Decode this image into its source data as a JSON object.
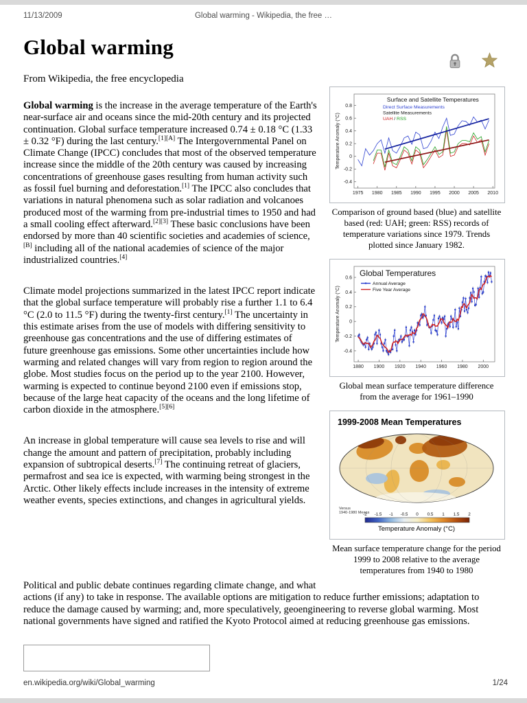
{
  "page": {
    "header": {
      "date": "11/13/2009",
      "title": "Global warming - Wikipedia, the free …"
    },
    "footer": {
      "url": "en.wikipedia.org/wiki/Global_warming",
      "page": "1/24"
    }
  },
  "icons": {
    "protection_lock": "lock-icon",
    "featured_article": "star-icon",
    "lock_color": "#b9b9b9",
    "star_color": "#b5a267"
  },
  "article": {
    "title": "Global warming",
    "tagline": "From Wikipedia, the free encyclopedia",
    "paragraphs": [
      {
        "segments": [
          {
            "t": "Global warming",
            "b": true
          },
          {
            "t": " is the increase in the average temperature of the Earth's near-surface air and oceans since the mid-20th century and its projected continuation. Global surface temperature increased 0.74 ± 0.18 °C (1.33 ± 0.32 °F) during the last century."
          },
          {
            "t": "[1][A]",
            "sup": true
          },
          {
            "t": " The Intergovernmental Panel on Climate Change (IPCC) concludes that most of the observed temperature increase since the middle of the 20th century was caused by increasing concentrations of greenhouse gases resulting from human activity such as fossil fuel burning and deforestation."
          },
          {
            "t": "[1]",
            "sup": true
          },
          {
            "t": " The IPCC also concludes that variations in natural phenomena such as solar radiation and volcanoes produced most of the warming from pre-industrial times to 1950 and had a small cooling effect afterward."
          },
          {
            "t": "[2][3]",
            "sup": true
          },
          {
            "t": " These basic conclusions have been endorsed by more than 40 scientific societies and academies of science,"
          },
          {
            "t": "[B]",
            "sup": true
          },
          {
            "t": " including all of the national academies of science of the major industrialized countries."
          },
          {
            "t": "[4]",
            "sup": true
          }
        ]
      },
      {
        "segments": [
          {
            "t": "Climate model projections summarized in the latest IPCC report indicate that the global surface temperature will probably rise a further 1.1 to 6.4 °C (2.0 to 11.5 °F) during the twenty-first century."
          },
          {
            "t": "[1]",
            "sup": true
          },
          {
            "t": " The uncertainty in this estimate arises from the use of models with differing sensitivity to greenhouse gas concentrations and the use of differing estimates of future greenhouse gas emissions. Some other uncertainties include how warming and related changes will vary from region to region around the globe. Most studies focus on the period up to the year 2100. However, warming is expected to continue beyond 2100 even if emissions stop, because of the large heat capacity of the oceans and the long lifetime of carbon dioxide in the atmosphere."
          },
          {
            "t": "[5][6]",
            "sup": true
          }
        ]
      },
      {
        "segments": [
          {
            "t": "An increase in global temperature will cause sea levels to rise and will change the amount and pattern of precipitation, probably including expansion of subtropical deserts."
          },
          {
            "t": "[7]",
            "sup": true
          },
          {
            "t": " The continuing retreat of glaciers, permafrost and sea ice is expected, with warming being strongest in the Arctic. Other likely effects include increases in the intensity of extreme weather events, species extinctions, and changes in agricultural yields."
          }
        ]
      },
      {
        "segments": [
          {
            "t": "Political and public debate continues regarding climate change, and what actions (if any) to take in response. The available options are mitigation to reduce further emissions; adaptation to reduce the damage caused by warming; and, more speculatively, geoengineering to reverse global warming. Most national governments have signed and ratified the Kyoto Protocol aimed at reducing greenhouse gas emissions."
          }
        ]
      }
    ]
  },
  "figures": [
    {
      "caption": "Comparison of ground based (blue) and satellite based (red: UAH; green: RSS) records of temperature variations since 1979. Trends plotted since January 1982."
    },
    {
      "caption": "Global mean surface temperature difference from the average for 1961–1990"
    },
    {
      "caption": "Mean surface temperature change for the period 1999 to 2008 relative to the average temperatures from 1940 to 1980"
    }
  ],
  "chart_data": [
    {
      "type": "line",
      "title": "Surface and Satellite Temperatures",
      "ylabel": "Temperature Anomaly (°C)",
      "xlim": [
        1974,
        2010.5
      ],
      "ylim": [
        -0.5,
        0.98
      ],
      "x_ticks": [
        1975,
        1980,
        1985,
        1990,
        1995,
        2000,
        2005,
        2010
      ],
      "y_ticks": [
        -0.4,
        -0.2,
        0,
        0.2,
        0.4,
        0.6,
        0.8
      ],
      "trend_from": 1982,
      "legend": [
        {
          "text": "Direct Surface Measurements",
          "color": "#2b3fd0"
        },
        {
          "text": "Satellite Measurements",
          "color": "#111111"
        },
        {
          "parts": [
            {
              "text": "UAH",
              "color": "#cc2020"
            },
            {
              "text": " / ",
              "color": "#111111"
            },
            {
              "text": "RSS",
              "color": "#1f9e1f"
            }
          ]
        }
      ],
      "series": [
        {
          "name": "Direct Surface Measurements",
          "color": "#2b3fd0",
          "start": 1975,
          "values": [
            -0.05,
            -0.15,
            0.12,
            0.02,
            0.09,
            0.2,
            0.26,
            0.05,
            0.29,
            0.09,
            0.05,
            0.16,
            0.29,
            0.32,
            0.19,
            0.38,
            0.34,
            0.12,
            0.14,
            0.24,
            0.38,
            0.28,
            0.46,
            0.6,
            0.33,
            0.35,
            0.48,
            0.56,
            0.55,
            0.49,
            0.62,
            0.54,
            0.57,
            0.43,
            0.57
          ]
        },
        {
          "name": "UAH",
          "color": "#cc2020",
          "start": 1979,
          "values": [
            -0.12,
            0.05,
            0.05,
            -0.22,
            0.05,
            -0.15,
            -0.18,
            -0.05,
            0.1,
            0.05,
            -0.12,
            0.1,
            0.05,
            -0.18,
            -0.1,
            0.0,
            0.1,
            -0.02,
            0.02,
            0.42,
            0.0,
            0.02,
            0.15,
            0.2,
            0.2,
            0.18,
            0.32,
            0.22,
            0.26,
            0.02,
            0.2
          ]
        },
        {
          "name": "RSS",
          "color": "#1f9e1f",
          "start": 1979,
          "values": [
            -0.07,
            0.1,
            0.1,
            -0.17,
            0.1,
            -0.1,
            -0.13,
            0.0,
            0.15,
            0.1,
            -0.07,
            0.15,
            0.1,
            -0.13,
            -0.05,
            0.05,
            0.15,
            0.03,
            0.07,
            0.47,
            0.05,
            0.07,
            0.2,
            0.25,
            0.25,
            0.23,
            0.37,
            0.27,
            0.31,
            0.07,
            0.25
          ]
        }
      ],
      "trends": [
        {
          "series": [
            "Direct Surface Measurements"
          ],
          "color": "#13219e"
        },
        {
          "series": [
            "UAH",
            "RSS"
          ],
          "color": "#8d1616"
        }
      ]
    },
    {
      "type": "line",
      "title": "Global Temperatures",
      "ylabel": "Temperature Anomaly (°C)",
      "xlim": [
        1876,
        2011
      ],
      "ylim": [
        -0.55,
        0.75
      ],
      "x_ticks": [
        1880,
        1900,
        1920,
        1940,
        1960,
        1980,
        2000
      ],
      "y_ticks": [
        -0.4,
        -0.2,
        0,
        0.2,
        0.4,
        0.6
      ],
      "legend": [
        {
          "text": "Annual Average",
          "color": "#2b3fd0"
        },
        {
          "text": "Five Year Average",
          "color": "#d02020"
        }
      ],
      "series": [
        {
          "name": "Annual Average",
          "color": "#2b3fd0",
          "start": 1880,
          "values": [
            -0.2,
            -0.18,
            -0.25,
            -0.28,
            -0.3,
            -0.32,
            -0.3,
            -0.35,
            -0.25,
            -0.22,
            -0.38,
            -0.3,
            -0.35,
            -0.38,
            -0.35,
            -0.3,
            -0.18,
            -0.15,
            -0.3,
            -0.2,
            -0.12,
            -0.18,
            -0.3,
            -0.35,
            -0.4,
            -0.3,
            -0.25,
            -0.4,
            -0.42,
            -0.45,
            -0.4,
            -0.42,
            -0.38,
            -0.38,
            -0.2,
            -0.12,
            -0.32,
            -0.4,
            -0.28,
            -0.25,
            -0.25,
            -0.2,
            -0.28,
            -0.25,
            -0.25,
            -0.2,
            -0.08,
            -0.2,
            -0.2,
            -0.33,
            -0.12,
            -0.08,
            -0.14,
            -0.28,
            -0.12,
            -0.18,
            -0.12,
            -0.02,
            -0.02,
            -0.05,
            0.08,
            0.1,
            0.05,
            0.08,
            0.2,
            0.08,
            -0.05,
            -0.03,
            -0.08,
            -0.08,
            -0.16,
            -0.06,
            0.02,
            0.08,
            -0.12,
            -0.13,
            -0.18,
            0.04,
            0.07,
            0.03,
            -0.02,
            0.05,
            0.03,
            0.07,
            -0.2,
            -0.1,
            -0.04,
            -0.02,
            -0.07,
            0.07,
            0.03,
            -0.08,
            0.01,
            0.16,
            -0.07,
            -0.01,
            -0.1,
            0.18,
            0.07,
            0.16,
            0.26,
            0.32,
            0.14,
            0.31,
            0.16,
            0.12,
            0.18,
            0.32,
            0.39,
            0.27,
            0.45,
            0.4,
            0.22,
            0.23,
            0.31,
            0.45,
            0.33,
            0.46,
            0.61,
            0.38,
            0.4,
            0.54,
            0.62,
            0.61,
            0.53,
            0.67,
            0.62,
            0.66,
            0.54
          ]
        },
        {
          "name": "Five Year Average",
          "color": "#d02020",
          "derived": "moving_average_5"
        }
      ],
      "smooth_window": 5
    },
    {
      "type": "heatmap",
      "title": "1999-2008 Mean Temperatures",
      "note_lines": [
        "Versus",
        "1940-1980 Means"
      ],
      "land_colors": [
        "#e9b34b",
        "#d88c28",
        "#b25d13",
        "#8e3b0a",
        "#f1e4bf",
        "#aac4dd",
        "#f7f2e2"
      ],
      "colorbar": {
        "ticks": [
          "-2",
          "-1.5",
          "-1",
          "-0.5",
          "0",
          "0.5",
          "1",
          "1.5",
          "2"
        ],
        "label": "Temperature Anomaly (°C)",
        "gradient": [
          "#20298f",
          "#3f63c4",
          "#8fb8e0",
          "#e8eef2",
          "#f7efc8",
          "#f2c25e",
          "#e08a2a",
          "#b5500f",
          "#7a2406"
        ]
      }
    }
  ]
}
